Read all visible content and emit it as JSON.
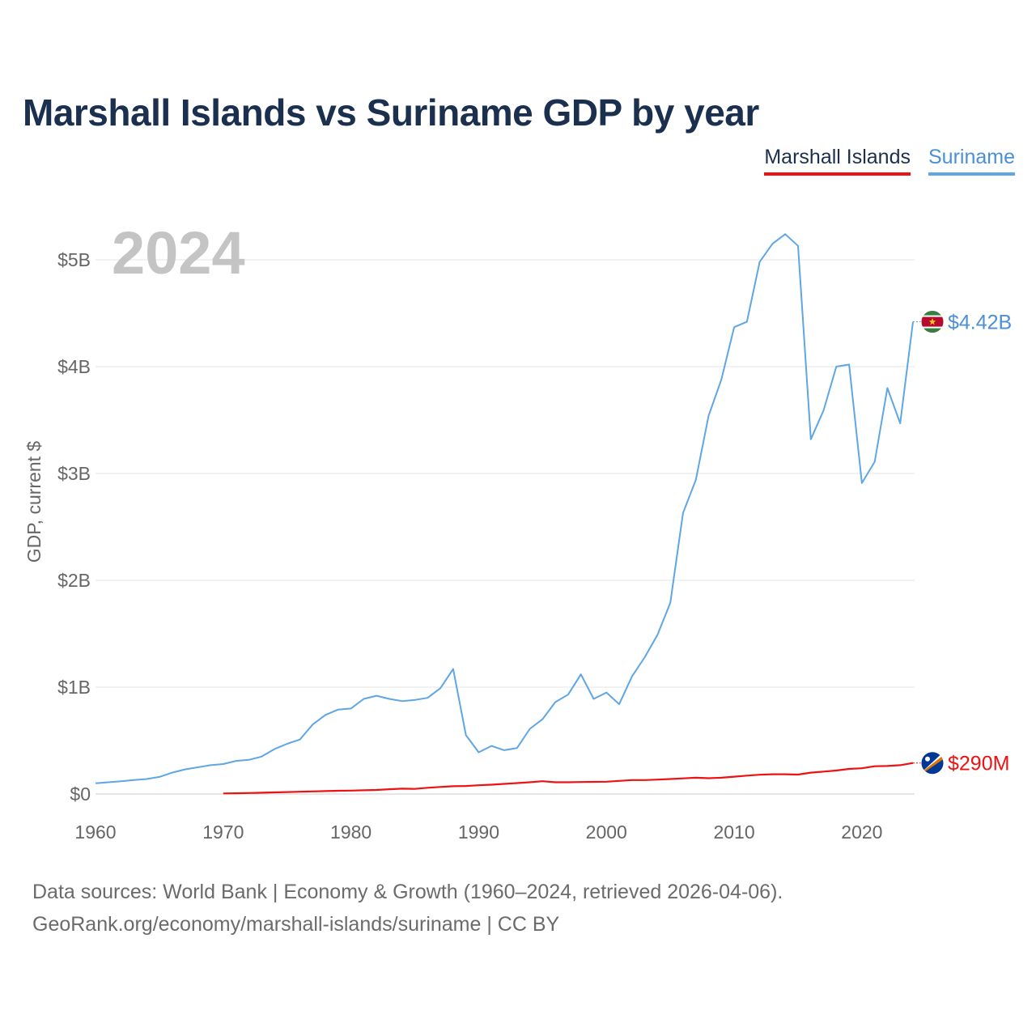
{
  "title": "Marshall Islands vs Suriname GDP by year",
  "legend": [
    {
      "name": "Marshall Islands",
      "color": "#ee1111"
    },
    {
      "name": "Suriname",
      "color": "#5ea6e4"
    }
  ],
  "footer": {
    "line1": "Data sources: World Bank | Economy & Growth (1960–2024, retrieved 2026-04-06).",
    "line2": "GeoRank.org/economy/marshall-islands/suriname | CC BY"
  },
  "chart_data": {
    "type": "line",
    "title": "Marshall Islands vs Suriname GDP by year",
    "xlabel": "",
    "ylabel": "GDP, current $",
    "xlim": [
      1960,
      2024
    ],
    "ylim": [
      0,
      5.3
    ],
    "unit": "billions USD",
    "year_label": "2024",
    "x_ticks": [
      1960,
      1970,
      1980,
      1990,
      2000,
      2010,
      2020
    ],
    "y_ticks": [
      {
        "value": 0,
        "label": "$0"
      },
      {
        "value": 1,
        "label": "$1B"
      },
      {
        "value": 2,
        "label": "$2B"
      },
      {
        "value": 3,
        "label": "$3B"
      },
      {
        "value": 4,
        "label": "$4B"
      },
      {
        "value": 5,
        "label": "$5B"
      }
    ],
    "grid": true,
    "legend_position": "top-right",
    "series": [
      {
        "name": "Suriname",
        "color": "#5ea6e4",
        "end_label": "$4.42B",
        "flag": "suriname-flag-icon",
        "x": [
          1960,
          1961,
          1962,
          1963,
          1964,
          1965,
          1966,
          1967,
          1968,
          1969,
          1970,
          1971,
          1972,
          1973,
          1974,
          1975,
          1976,
          1977,
          1978,
          1979,
          1980,
          1981,
          1982,
          1983,
          1984,
          1985,
          1986,
          1987,
          1988,
          1989,
          1990,
          1991,
          1992,
          1993,
          1994,
          1995,
          1996,
          1997,
          1998,
          1999,
          2000,
          2001,
          2002,
          2003,
          2004,
          2005,
          2006,
          2007,
          2008,
          2009,
          2010,
          2011,
          2012,
          2013,
          2014,
          2015,
          2016,
          2017,
          2018,
          2019,
          2020,
          2021,
          2022,
          2023,
          2024
        ],
        "values": [
          0.1,
          0.11,
          0.12,
          0.13,
          0.14,
          0.16,
          0.2,
          0.23,
          0.25,
          0.27,
          0.28,
          0.31,
          0.32,
          0.35,
          0.42,
          0.47,
          0.51,
          0.65,
          0.74,
          0.79,
          0.8,
          0.89,
          0.92,
          0.89,
          0.87,
          0.88,
          0.9,
          0.99,
          1.17,
          0.55,
          0.39,
          0.45,
          0.41,
          0.43,
          0.61,
          0.7,
          0.86,
          0.93,
          1.12,
          0.89,
          0.95,
          0.84,
          1.1,
          1.28,
          1.49,
          1.79,
          2.63,
          2.94,
          3.54,
          3.88,
          4.37,
          4.42,
          4.98,
          5.15,
          5.24,
          5.13,
          3.32,
          3.59,
          4.0,
          4.02,
          2.91,
          3.11,
          3.8,
          3.47,
          4.42
        ]
      },
      {
        "name": "Marshall Islands",
        "color": "#ee1111",
        "end_label": "$290M",
        "flag": "marshall-islands-flag-icon",
        "x": [
          1970,
          1971,
          1972,
          1973,
          1974,
          1975,
          1976,
          1977,
          1978,
          1979,
          1980,
          1981,
          1982,
          1983,
          1984,
          1985,
          1986,
          1987,
          1988,
          1989,
          1990,
          1991,
          1992,
          1993,
          1994,
          1995,
          1996,
          1997,
          1998,
          1999,
          2000,
          2001,
          2002,
          2003,
          2004,
          2005,
          2006,
          2007,
          2008,
          2009,
          2010,
          2011,
          2012,
          2013,
          2014,
          2015,
          2016,
          2017,
          2018,
          2019,
          2020,
          2021,
          2022,
          2023,
          2024
        ],
        "values": [
          0.005,
          0.007,
          0.009,
          0.012,
          0.015,
          0.018,
          0.021,
          0.024,
          0.027,
          0.03,
          0.032,
          0.035,
          0.038,
          0.045,
          0.05,
          0.048,
          0.058,
          0.066,
          0.073,
          0.075,
          0.082,
          0.087,
          0.095,
          0.102,
          0.11,
          0.12,
          0.11,
          0.11,
          0.112,
          0.114,
          0.115,
          0.123,
          0.13,
          0.13,
          0.135,
          0.14,
          0.146,
          0.152,
          0.148,
          0.152,
          0.162,
          0.172,
          0.18,
          0.185,
          0.185,
          0.182,
          0.2,
          0.21,
          0.22,
          0.235,
          0.241,
          0.26,
          0.262,
          0.27,
          0.29
        ]
      }
    ]
  }
}
